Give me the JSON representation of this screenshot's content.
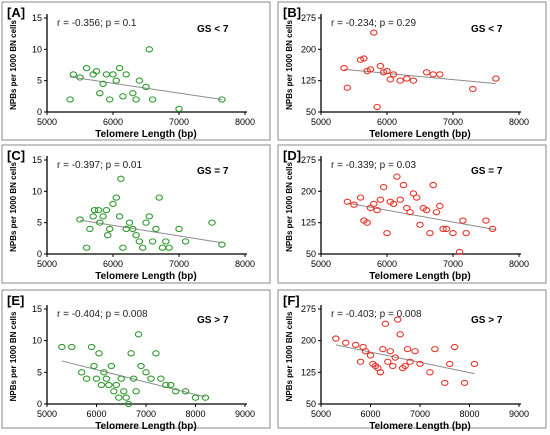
{
  "chart_data": [
    {
      "panel": "[A]",
      "type": "scatter",
      "color": "#2e9a2e",
      "stat": "r = -0.356; p = 0.1",
      "group": "GS < 7",
      "xlabel": "Telomere Length (bp)",
      "ylabel": "NPBs per 1000 BN cells",
      "xlim": [
        5000,
        8000
      ],
      "ylim": [
        0,
        15
      ],
      "xticks": [
        5000,
        6000,
        7000,
        8000
      ],
      "yticks": [
        0,
        5,
        10,
        15
      ],
      "points": [
        [
          5350,
          2
        ],
        [
          5400,
          6
        ],
        [
          5500,
          5.5
        ],
        [
          5600,
          7
        ],
        [
          5700,
          6
        ],
        [
          5750,
          6.5
        ],
        [
          5800,
          3
        ],
        [
          5850,
          4.5
        ],
        [
          5900,
          6
        ],
        [
          5950,
          2
        ],
        [
          6000,
          6
        ],
        [
          6050,
          5
        ],
        [
          6100,
          7
        ],
        [
          6150,
          2.5
        ],
        [
          6200,
          6
        ],
        [
          6300,
          3
        ],
        [
          6350,
          2
        ],
        [
          6400,
          5
        ],
        [
          6500,
          4
        ],
        [
          6550,
          10
        ],
        [
          6600,
          2
        ],
        [
          7000,
          0.5
        ],
        [
          7650,
          2
        ]
      ],
      "trend": [
        [
          5350,
          5.6
        ],
        [
          7650,
          2.0
        ]
      ]
    },
    {
      "panel": "[B]",
      "type": "scatter",
      "color": "#e8352a",
      "stat": "r = -0.234; p = 0.29",
      "group": "GS < 7",
      "xlabel": "Telomere Length (bp)",
      "ylabel": "NPBs per 1000 BN cells",
      "xlim": [
        5000,
        8000
      ],
      "ylim": [
        50,
        275
      ],
      "xticks": [
        5000,
        6000,
        7000,
        8000
      ],
      "yticks": [
        50,
        125,
        200,
        275
      ],
      "points": [
        [
          5350,
          155
        ],
        [
          5400,
          108
        ],
        [
          5600,
          175
        ],
        [
          5650,
          178
        ],
        [
          5700,
          148
        ],
        [
          5750,
          152
        ],
        [
          5800,
          240
        ],
        [
          5850,
          62
        ],
        [
          5900,
          160
        ],
        [
          5950,
          145
        ],
        [
          6000,
          148
        ],
        [
          6050,
          128
        ],
        [
          6100,
          140
        ],
        [
          6200,
          125
        ],
        [
          6300,
          130
        ],
        [
          6400,
          125
        ],
        [
          6600,
          145
        ],
        [
          6700,
          140
        ],
        [
          6800,
          140
        ],
        [
          7300,
          105
        ],
        [
          7650,
          130
        ]
      ],
      "trend": [
        [
          5350,
          152
        ],
        [
          7650,
          118
        ]
      ]
    },
    {
      "panel": "[C]",
      "type": "scatter",
      "color": "#2e9a2e",
      "stat": "r = -0.397; p = 0.01",
      "group": "GS = 7",
      "xlabel": "Telomere Length (bp)",
      "ylabel": "NPBs per 1000 BN cells",
      "xlim": [
        5000,
        8000
      ],
      "ylim": [
        0,
        15
      ],
      "xticks": [
        5000,
        6000,
        7000,
        8000
      ],
      "yticks": [
        0,
        5,
        10,
        15
      ],
      "points": [
        [
          5500,
          5.5
        ],
        [
          5600,
          1
        ],
        [
          5650,
          4
        ],
        [
          5700,
          6
        ],
        [
          5720,
          7
        ],
        [
          5780,
          7
        ],
        [
          5800,
          5
        ],
        [
          5850,
          6
        ],
        [
          5900,
          7
        ],
        [
          5920,
          3
        ],
        [
          5950,
          4
        ],
        [
          6000,
          8
        ],
        [
          6050,
          9
        ],
        [
          6100,
          6
        ],
        [
          6120,
          12
        ],
        [
          6150,
          1
        ],
        [
          6200,
          4
        ],
        [
          6250,
          5
        ],
        [
          6300,
          4
        ],
        [
          6350,
          3
        ],
        [
          6400,
          2
        ],
        [
          6450,
          1
        ],
        [
          6500,
          5
        ],
        [
          6550,
          6
        ],
        [
          6600,
          2
        ],
        [
          6650,
          4
        ],
        [
          6700,
          9
        ],
        [
          6750,
          1
        ],
        [
          6800,
          2
        ],
        [
          6850,
          1
        ],
        [
          7000,
          4
        ],
        [
          7100,
          2
        ],
        [
          7500,
          5
        ],
        [
          7650,
          1.5
        ]
      ],
      "trend": [
        [
          5500,
          5.4
        ],
        [
          7650,
          1.8
        ]
      ]
    },
    {
      "panel": "[D]",
      "type": "scatter",
      "color": "#e8352a",
      "stat": "r = -0.339; p = 0.03",
      "group": "GS = 7",
      "xlabel": "Telomere Length (bp)",
      "ylabel": "NPBs per 1000 BN cells",
      "xlim": [
        5000,
        8000
      ],
      "ylim": [
        50,
        275
      ],
      "xticks": [
        5000,
        6000,
        7000,
        8000
      ],
      "yticks": [
        50,
        125,
        200,
        275
      ],
      "points": [
        [
          5400,
          175
        ],
        [
          5500,
          168
        ],
        [
          5600,
          185
        ],
        [
          5650,
          130
        ],
        [
          5700,
          125
        ],
        [
          5750,
          160
        ],
        [
          5800,
          170
        ],
        [
          5850,
          155
        ],
        [
          5900,
          180
        ],
        [
          5950,
          210
        ],
        [
          6000,
          100
        ],
        [
          6050,
          175
        ],
        [
          6100,
          170
        ],
        [
          6150,
          235
        ],
        [
          6200,
          180
        ],
        [
          6250,
          215
        ],
        [
          6300,
          160
        ],
        [
          6350,
          150
        ],
        [
          6400,
          195
        ],
        [
          6450,
          185
        ],
        [
          6500,
          120
        ],
        [
          6550,
          160
        ],
        [
          6600,
          155
        ],
        [
          6650,
          100
        ],
        [
          6700,
          215
        ],
        [
          6750,
          150
        ],
        [
          6800,
          165
        ],
        [
          6850,
          110
        ],
        [
          6900,
          110
        ],
        [
          7000,
          100
        ],
        [
          7100,
          55
        ],
        [
          7150,
          130
        ],
        [
          7200,
          100
        ],
        [
          7500,
          130
        ],
        [
          7600,
          110
        ]
      ],
      "trend": [
        [
          5400,
          172
        ],
        [
          7650,
          108
        ]
      ]
    },
    {
      "panel": "[E]",
      "type": "scatter",
      "color": "#2e9a2e",
      "stat": "r = -0.404; p = 0.008",
      "group": "GS > 7",
      "xlabel": "Telomere Length (bp)",
      "ylabel": "NPBs per 1000 BN cells",
      "xlim": [
        5000,
        9000
      ],
      "ylim": [
        0,
        15
      ],
      "xticks": [
        5000,
        6000,
        7000,
        8000,
        9000
      ],
      "yticks": [
        0,
        5,
        10,
        15
      ],
      "points": [
        [
          5300,
          9
        ],
        [
          5500,
          9
        ],
        [
          5700,
          5
        ],
        [
          5800,
          4
        ],
        [
          5900,
          9
        ],
        [
          5950,
          6
        ],
        [
          6000,
          4
        ],
        [
          6050,
          8
        ],
        [
          6100,
          3
        ],
        [
          6150,
          5
        ],
        [
          6200,
          4
        ],
        [
          6250,
          3
        ],
        [
          6300,
          6
        ],
        [
          6350,
          2
        ],
        [
          6400,
          3
        ],
        [
          6450,
          1
        ],
        [
          6500,
          4
        ],
        [
          6550,
          2
        ],
        [
          6600,
          1
        ],
        [
          6650,
          0
        ],
        [
          6700,
          8
        ],
        [
          6750,
          4
        ],
        [
          6800,
          2
        ],
        [
          6850,
          11
        ],
        [
          6900,
          6
        ],
        [
          7000,
          5
        ],
        [
          7100,
          4
        ],
        [
          7200,
          8
        ],
        [
          7300,
          4
        ],
        [
          7400,
          3
        ],
        [
          7500,
          3
        ],
        [
          7600,
          2
        ],
        [
          7800,
          2
        ],
        [
          8000,
          1
        ],
        [
          8200,
          1
        ]
      ],
      "trend": [
        [
          5300,
          6.8
        ],
        [
          8200,
          1.1
        ]
      ]
    },
    {
      "panel": "[F]",
      "type": "scatter",
      "color": "#e8352a",
      "stat": "r = -0.403; p = 0.008",
      "group": "GS > 7",
      "xlabel": "Telomere Length (bp)",
      "ylabel": "NPBs per 1000 BN cells",
      "xlim": [
        5000,
        9000
      ],
      "ylim": [
        50,
        275
      ],
      "xticks": [
        5000,
        6000,
        7000,
        8000,
        9000
      ],
      "yticks": [
        50,
        125,
        200,
        275
      ],
      "points": [
        [
          5300,
          205
        ],
        [
          5500,
          195
        ],
        [
          5700,
          190
        ],
        [
          5800,
          150
        ],
        [
          5850,
          185
        ],
        [
          5900,
          175
        ],
        [
          6000,
          165
        ],
        [
          6050,
          145
        ],
        [
          6100,
          140
        ],
        [
          6150,
          135
        ],
        [
          6200,
          125
        ],
        [
          6250,
          180
        ],
        [
          6300,
          240
        ],
        [
          6350,
          150
        ],
        [
          6400,
          175
        ],
        [
          6450,
          140
        ],
        [
          6500,
          160
        ],
        [
          6550,
          250
        ],
        [
          6600,
          215
        ],
        [
          6650,
          135
        ],
        [
          6700,
          140
        ],
        [
          6750,
          180
        ],
        [
          6800,
          150
        ],
        [
          6900,
          175
        ],
        [
          7000,
          145
        ],
        [
          7200,
          125
        ],
        [
          7300,
          180
        ],
        [
          7500,
          100
        ],
        [
          7600,
          145
        ],
        [
          7700,
          185
        ],
        [
          7900,
          100
        ],
        [
          8100,
          145
        ]
      ],
      "trend": [
        [
          5300,
          190
        ],
        [
          8100,
          122
        ]
      ]
    }
  ]
}
